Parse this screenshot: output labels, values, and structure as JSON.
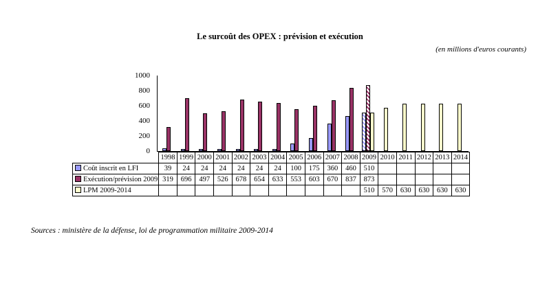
{
  "source_note": "Sources : ministère de la défense, loi de programmation militaire 2009-2014",
  "chart_data": {
    "type": "bar",
    "title": "Le surcoût des OPEX : prévision et exécution",
    "subtitle": "(en millions d'euros courants)",
    "xlabel": "",
    "ylabel": "",
    "ylim": [
      0,
      1000
    ],
    "yticks": [
      0,
      200,
      400,
      600,
      800,
      1000
    ],
    "grid": false,
    "legend_position": "table-left",
    "hatch_index": 11,
    "categories": [
      "1998",
      "1999",
      "2000",
      "2001",
      "2002",
      "2003",
      "2004",
      "2005",
      "2006",
      "2007",
      "2008",
      "2009",
      "2010",
      "2011",
      "2012",
      "2013",
      "2014"
    ],
    "series": [
      {
        "name": "Coût inscrit en LFI",
        "color": "#9999ff",
        "values": [
          39,
          24,
          24,
          24,
          24,
          24,
          24,
          100,
          175,
          360,
          460,
          510,
          null,
          null,
          null,
          null,
          null
        ]
      },
      {
        "name": "Exécution/prévision 2009",
        "color": "#993366",
        "values": [
          319,
          696,
          497,
          526,
          678,
          654,
          633,
          553,
          603,
          670,
          837,
          873,
          null,
          null,
          null,
          null,
          null
        ]
      },
      {
        "name": "LPM 2009-2014",
        "color": "#ffffcc",
        "values": [
          null,
          null,
          null,
          null,
          null,
          null,
          null,
          null,
          null,
          null,
          null,
          510,
          570,
          630,
          630,
          630,
          630
        ]
      }
    ]
  }
}
